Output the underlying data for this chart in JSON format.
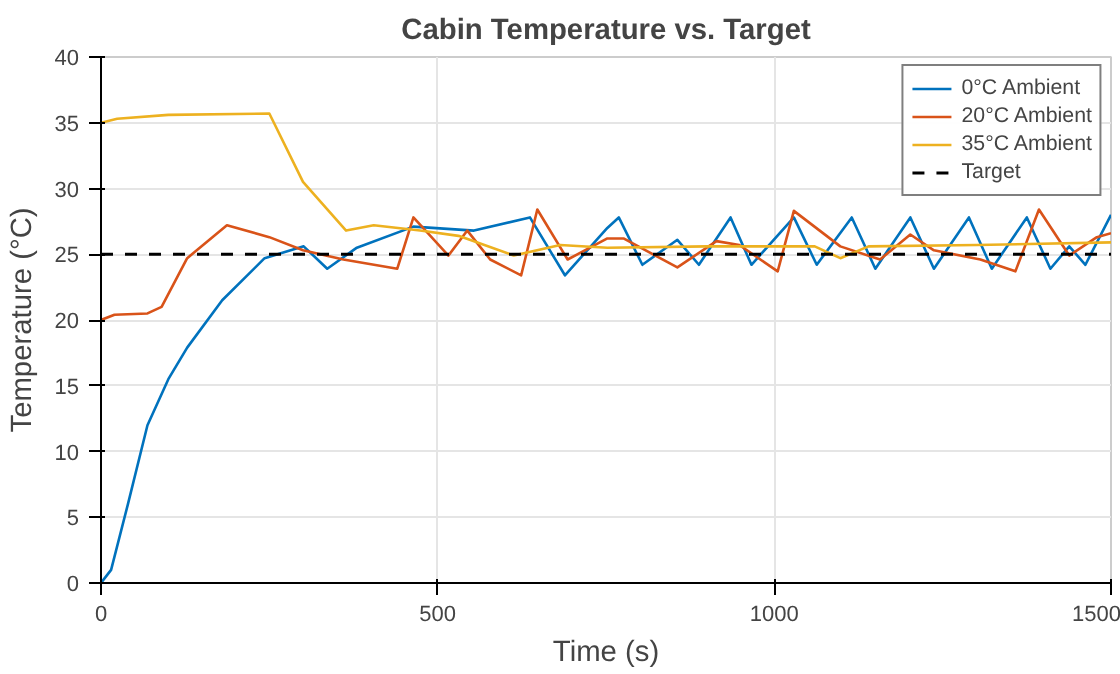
{
  "chart_data": {
    "type": "line",
    "title": "Cabin Temperature vs. Target",
    "xlabel": "Time (s)",
    "ylabel": "Temperature (°C)",
    "xlim": [
      0,
      1500
    ],
    "ylim": [
      0,
      40
    ],
    "xticks": [
      0,
      500,
      1000,
      1500
    ],
    "yticks": [
      0,
      5,
      10,
      15,
      20,
      25,
      30,
      35,
      40
    ],
    "grid": true,
    "legend": "top right",
    "line_style": "solid",
    "series": [
      {
        "name": "0°C Ambient",
        "color": "#0072bd",
        "x": [
          0,
          15,
          40,
          69,
          100,
          128,
          180,
          243,
          301,
          336,
          380,
          464,
          554,
          637,
          689,
          752,
          769,
          804,
          856,
          888,
          935,
          966,
          1029,
          1063,
          1115,
          1150,
          1202,
          1237,
          1289,
          1323,
          1375,
          1410,
          1438,
          1462,
          1500
        ],
        "values": [
          0,
          1,
          6,
          12,
          15.5,
          17.9,
          21.5,
          24.7,
          25.6,
          23.9,
          25.5,
          27.1,
          26.8,
          27.8,
          23.4,
          27,
          27.8,
          24.2,
          26.1,
          24.2,
          27.8,
          24.2,
          27.8,
          24.2,
          27.8,
          23.9,
          27.8,
          23.9,
          27.8,
          23.9,
          27.8,
          23.9,
          25.6,
          24.2,
          28
        ]
      },
      {
        "name": "20°C Ambient",
        "color": "#d95319",
        "x": [
          0,
          20,
          69,
          90,
          128,
          187,
          250,
          300,
          360,
          440,
          464,
          516,
          544,
          578,
          624,
          648,
          693,
          752,
          776,
          856,
          914,
          948,
          1005,
          1029,
          1098,
          1157,
          1202,
          1237,
          1306,
          1358,
          1393,
          1438,
          1479,
          1500
        ],
        "values": [
          20,
          20.4,
          20.5,
          21,
          24.7,
          27.2,
          26.3,
          25.3,
          24.6,
          23.9,
          27.8,
          24.9,
          26.8,
          24.6,
          23.4,
          28.4,
          24.6,
          26.2,
          26.2,
          24,
          26,
          25.7,
          23.7,
          28.3,
          25.6,
          24.6,
          26.5,
          25.3,
          24.6,
          23.7,
          28.4,
          24.9,
          26.3,
          26.6
        ]
      },
      {
        "name": "35°C Ambient",
        "color": "#edb120",
        "x": [
          0,
          24,
          100,
          250,
          300,
          364,
          405,
          474,
          531,
          613,
          682,
          752,
          900,
          1060,
          1098,
          1140,
          1300,
          1500
        ],
        "values": [
          35,
          35.3,
          35.6,
          35.7,
          30.5,
          26.8,
          27.2,
          26.8,
          26.4,
          24.9,
          25.7,
          25.5,
          25.6,
          25.6,
          24.7,
          25.6,
          25.7,
          25.9
        ]
      }
    ],
    "ref_lines": [
      {
        "axis": "y",
        "value": 25,
        "label": "Target",
        "color": "#000000",
        "line_style": "dashed"
      }
    ]
  }
}
